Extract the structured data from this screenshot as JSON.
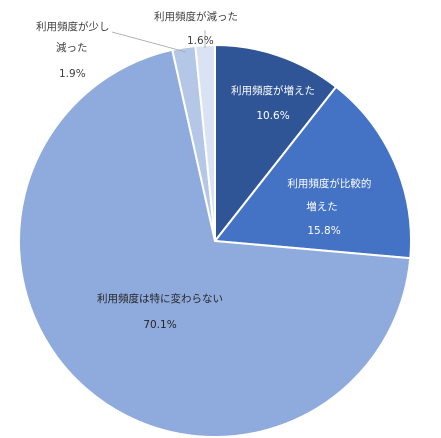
{
  "chart_data": {
    "type": "pie",
    "start_angle_deg": 0,
    "direction": "clockwise",
    "slices": [
      {
        "name": "利用頻度が増えた",
        "lines": [
          "利用頻度が増えた"
        ],
        "value": 10.6,
        "value_label": "10.6%",
        "color": "#2f5597"
      },
      {
        "name": "利用頻度が比較的増えた",
        "lines": [
          "利用頻度が比較的",
          "増えた"
        ],
        "value": 15.8,
        "value_label": "15.8%",
        "color": "#4472c4"
      },
      {
        "name": "利用頻度は特に変わらない",
        "lines": [
          "利用頻度は特に変わらない"
        ],
        "value": 70.1,
        "value_label": "70.1%",
        "color": "#8faadc"
      },
      {
        "name": "利用頻度が少し減った",
        "lines": [
          "利用頻度が少し",
          "減った"
        ],
        "value": 1.9,
        "value_label": "1.9%",
        "color": "#b4c7e7"
      },
      {
        "name": "利用頻度が減った",
        "lines": [
          "利用頻度が減った"
        ],
        "value": 1.6,
        "value_label": "1.6%",
        "color": "#dae3f3"
      }
    ]
  }
}
